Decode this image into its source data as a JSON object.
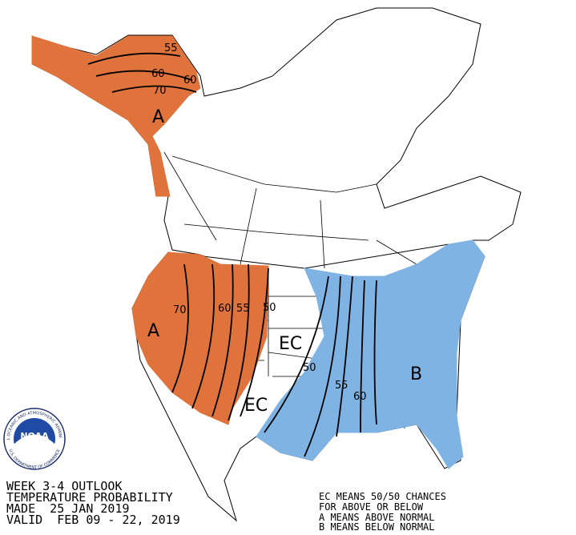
{
  "title_lines": [
    "WEEK 3-4 OUTLOOK",
    "TEMPERATURE PROBABILITY",
    "MADE  25 JAN 2019",
    "VALID  FEB 09 - 22, 2019"
  ],
  "legend_lines": [
    "EC MEANS 50/50 CHANCES",
    "FOR ABOVE OR BELOW",
    "A MEANS ABOVE NORMAL",
    "B MEANS BELOW NORMAL"
  ],
  "region_labels": [
    "A",
    "A",
    "EC",
    "EC",
    "B"
  ],
  "contour_labels": [
    "55",
    "60",
    "60",
    "70",
    "70",
    "60",
    "55",
    "50",
    "50",
    "55",
    "60"
  ],
  "logo": {
    "name": "NOAA",
    "ring_top": "NATIONAL OCEANIC AND ATMOSPHERIC ADMINISTRATION",
    "ring_bottom": "U.S. DEPARTMENT OF COMMERCE"
  }
}
